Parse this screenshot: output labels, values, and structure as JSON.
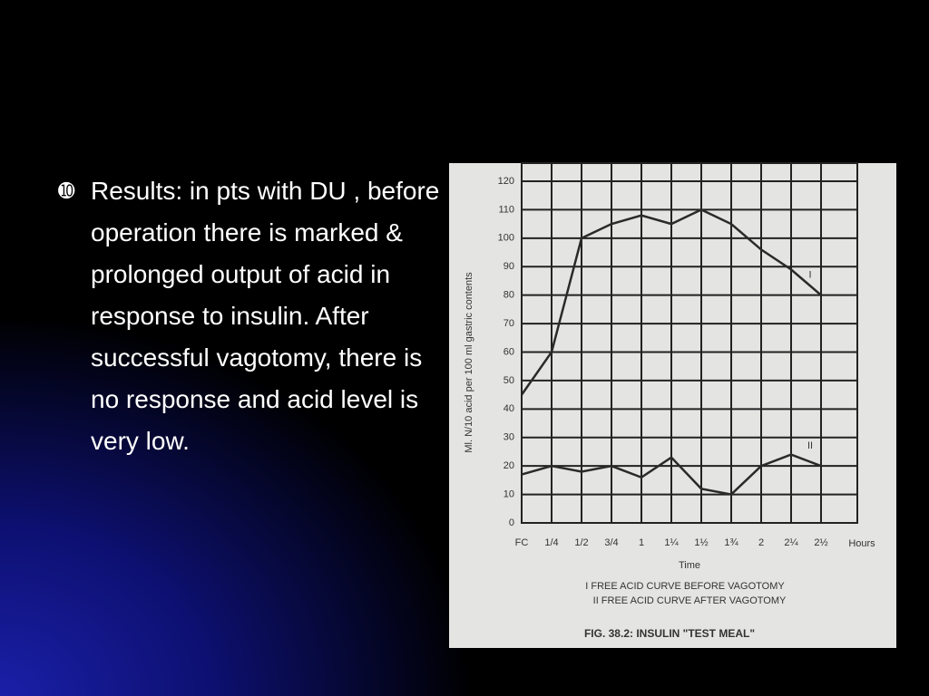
{
  "slide": {
    "marker": "➓",
    "bullet": "Results: in pts with DU , before operation there is marked & prolonged output of acid in response to insulin. After successful vagotomy, there is no response and acid level is very low."
  },
  "chart_data": {
    "type": "line",
    "categories": [
      "FC",
      "1/4",
      "1/2",
      "3/4",
      "1",
      "1¼",
      "1½",
      "1¾",
      "2",
      "2¼",
      "2½"
    ],
    "x_unit": "Hours",
    "x_label": "Time",
    "y_label": "Ml. N/10 acid per 100 ml gastric contents",
    "ylim": [
      0,
      120
    ],
    "yticks": [
      0,
      10,
      20,
      30,
      40,
      50,
      60,
      70,
      80,
      90,
      100,
      110,
      120
    ],
    "grid": true,
    "series": [
      {
        "name": "I",
        "color": "#2a2a2a",
        "values": [
          45,
          60,
          100,
          105,
          108,
          105,
          110,
          105,
          96,
          89,
          80
        ]
      },
      {
        "name": "II",
        "color": "#2a2a2a",
        "values": [
          17,
          20,
          18,
          20,
          16,
          23,
          12,
          10,
          20,
          24,
          20
        ]
      }
    ],
    "legend": [
      "I FREE ACID CURVE BEFORE VAGOTOMY",
      "II FREE ACID CURVE AFTER VAGOTOMY"
    ],
    "caption": "FIG. 38.2: INSULIN \"TEST MEAL\""
  }
}
